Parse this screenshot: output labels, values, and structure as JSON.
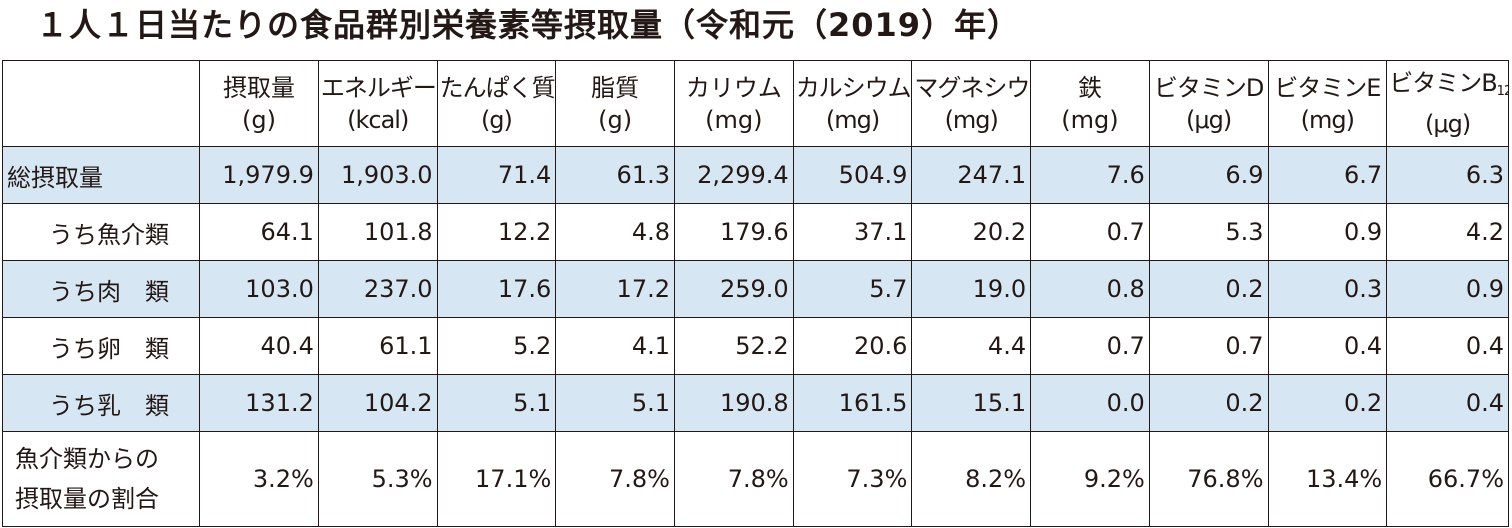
{
  "title": "１人１日当たりの食品群別栄養素等摂取量（令和元（2019）年）",
  "columns": [
    {
      "name": "摂取量",
      "unit": "(g)"
    },
    {
      "name": "エネルギー",
      "unit": "(kcal)"
    },
    {
      "name": "たんぱく質",
      "unit": "(g)"
    },
    {
      "name": "脂質",
      "unit": "(g)"
    },
    {
      "name": "カリウム",
      "unit": "(mg)"
    },
    {
      "name": "カルシウム",
      "unit": "(mg)"
    },
    {
      "name": "マグネシウム",
      "unit": "(mg)"
    },
    {
      "name": "鉄",
      "unit": "(mg)"
    },
    {
      "name": "ビタミンD",
      "unit": "(μg)"
    },
    {
      "name": "ビタミンE",
      "unit": "(mg)"
    },
    {
      "name": "ビタミンB",
      "name_sub": "12",
      "unit": "(μg)"
    }
  ],
  "rows": [
    {
      "label": "総摂取量",
      "values": [
        "1,979.9",
        "1,903.0",
        "71.4",
        "61.3",
        "2,299.4",
        "504.9",
        "247.1",
        "7.6",
        "6.9",
        "6.7",
        "6.3"
      ]
    },
    {
      "label": "うち魚介類",
      "values": [
        "64.1",
        "101.8",
        "12.2",
        "4.8",
        "179.6",
        "37.1",
        "20.2",
        "0.7",
        "5.3",
        "0.9",
        "4.2"
      ]
    },
    {
      "label": "うち肉　類",
      "values": [
        "103.0",
        "237.0",
        "17.6",
        "17.2",
        "259.0",
        "5.7",
        "19.0",
        "0.8",
        "0.2",
        "0.3",
        "0.9"
      ]
    },
    {
      "label": "うち卵　類",
      "values": [
        "40.4",
        "61.1",
        "5.2",
        "4.1",
        "52.2",
        "20.6",
        "4.4",
        "0.7",
        "0.7",
        "0.4",
        "0.4"
      ]
    },
    {
      "label": "うち乳　類",
      "values": [
        "131.2",
        "104.2",
        "5.1",
        "5.1",
        "190.8",
        "161.5",
        "15.1",
        "0.0",
        "0.2",
        "0.2",
        "0.4"
      ]
    }
  ],
  "ratio_row": {
    "label_line1": "魚介類からの",
    "label_line2": "摂取量の割合",
    "values": [
      "3.2%",
      "5.3%",
      "17.1%",
      "7.8%",
      "7.8%",
      "7.3%",
      "8.2%",
      "9.2%",
      "76.8%",
      "13.4%",
      "66.7%"
    ]
  },
  "colors": {
    "row_shade": "#d6e6f3",
    "text": "#231815",
    "border": "#231815"
  }
}
